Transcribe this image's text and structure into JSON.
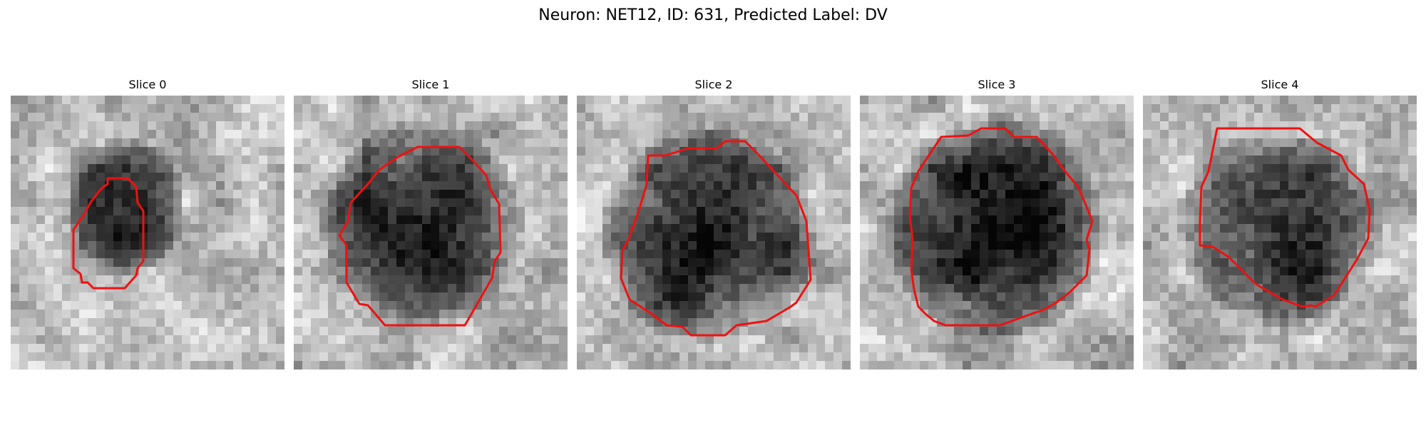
{
  "figure": {
    "title": "Neuron: NET12, ID: 631, Predicted Label: DV"
  },
  "contour_color": "#ee1111",
  "panels": [
    {
      "title": "Slice 0"
    },
    {
      "title": "Slice 1"
    },
    {
      "title": "Slice 2"
    },
    {
      "title": "Slice 3"
    },
    {
      "title": "Slice 4"
    }
  ]
}
